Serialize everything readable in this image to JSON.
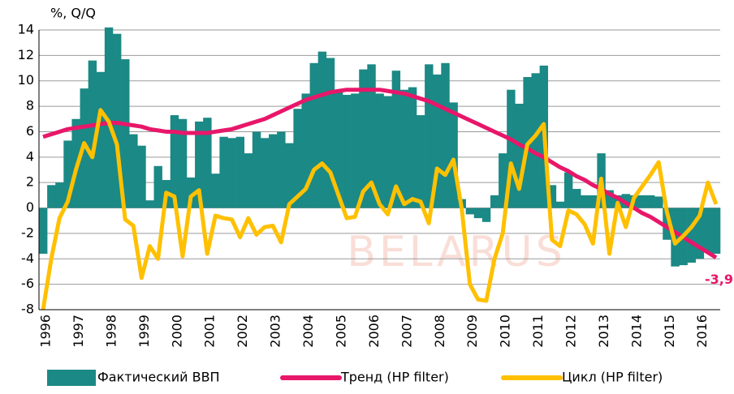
{
  "chart_data": {
    "type": "bar-line",
    "ylabel": "%, Q/Q",
    "watermark": "BELARUS",
    "annotation": "-3,9",
    "categories": [
      "1996",
      null,
      null,
      null,
      "1997",
      null,
      null,
      null,
      "1998",
      null,
      null,
      null,
      "1999",
      null,
      null,
      null,
      "2000",
      null,
      null,
      null,
      "2001",
      null,
      null,
      null,
      "2002",
      null,
      null,
      null,
      "2003",
      null,
      null,
      null,
      "2004",
      null,
      null,
      null,
      "2005",
      null,
      null,
      null,
      "2006",
      null,
      null,
      null,
      "2007",
      null,
      null,
      null,
      "2008",
      null,
      null,
      null,
      "2009",
      null,
      null,
      null,
      "2010",
      null,
      null,
      null,
      "2011",
      null,
      null,
      null,
      "2012",
      null,
      null,
      null,
      "2013",
      null,
      null,
      null,
      "2014",
      null,
      null,
      null,
      "2015",
      null,
      null,
      null,
      "2016",
      null,
      null
    ],
    "series": [
      {
        "name": "Фактический ВВП",
        "kind": "bar",
        "color": "#1b8985",
        "values": [
          -3.6,
          1.8,
          2,
          5.3,
          7,
          9.4,
          11.6,
          10.7,
          14.2,
          13.7,
          11.7,
          5.8,
          4.9,
          0.6,
          3.3,
          2.2,
          7.3,
          7,
          2.4,
          6.8,
          7.1,
          2.7,
          5.6,
          5.5,
          5.6,
          4.3,
          6,
          5.5,
          5.8,
          6,
          5.1,
          7.8,
          9,
          11.4,
          12.3,
          11.8,
          9.3,
          8.9,
          9,
          10.9,
          11.3,
          9,
          8.8,
          10.8,
          9.3,
          9.5,
          7.3,
          11.3,
          10.5,
          11.4,
          8.3,
          0.7,
          -0.5,
          -0.8,
          -1.1,
          1,
          4.3,
          9.3,
          8.2,
          10.3,
          10.6,
          11.2,
          1.8,
          0.5,
          2.8,
          1.5,
          1,
          1,
          4.3,
          1.4,
          1,
          1.1,
          1,
          1,
          1,
          0.9,
          -2.5,
          -4.6,
          -4.5,
          -4.3,
          -4,
          -3.5,
          -3.6
        ]
      },
      {
        "name": "Тренд (HP filter)",
        "kind": "line",
        "color": "#e8176a",
        "values": [
          5.6,
          5.8,
          6.0,
          6.2,
          6.3,
          6.4,
          6.5,
          6.6,
          6.7,
          6.7,
          6.6,
          6.5,
          6.4,
          6.2,
          6.1,
          6.0,
          6.0,
          5.9,
          5.9,
          5.9,
          5.9,
          6.0,
          6.1,
          6.2,
          6.4,
          6.6,
          6.8,
          7.0,
          7.3,
          7.6,
          7.9,
          8.2,
          8.5,
          8.7,
          8.9,
          9.1,
          9.2,
          9.3,
          9.3,
          9.3,
          9.3,
          9.3,
          9.2,
          9.1,
          9.0,
          8.8,
          8.6,
          8.4,
          8.1,
          7.8,
          7.5,
          7.2,
          6.9,
          6.6,
          6.3,
          6.0,
          5.7,
          5.4,
          5.0,
          4.7,
          4.3,
          4.0,
          3.6,
          3.2,
          2.9,
          2.5,
          2.2,
          1.8,
          1.5,
          1.1,
          0.8,
          0.4,
          0.0,
          -0.4,
          -0.7,
          -1.1,
          -1.5,
          -1.9,
          -2.3,
          -2.7,
          -3.1,
          -3.5,
          -3.9
        ]
      },
      {
        "name": "Цикл (HP filter)",
        "kind": "line",
        "color": "#ffc000",
        "values": [
          -8,
          -4,
          -0.8,
          0.5,
          3,
          5.1,
          4,
          7.7,
          6.8,
          5,
          -0.9,
          -1.4,
          -5.5,
          -3,
          -4,
          1.2,
          0.9,
          -3.8,
          0.9,
          1.4,
          -3.6,
          -0.6,
          -0.8,
          -0.9,
          -2.3,
          -0.8,
          -2.1,
          -1.5,
          -1.4,
          -2.7,
          0.3,
          0.9,
          1.5,
          3.0,
          3.5,
          2.8,
          1.0,
          -0.8,
          -0.7,
          1.3,
          2.0,
          0.3,
          -0.5,
          1.7,
          0.3,
          0.7,
          0.5,
          -1.2,
          3.1,
          2.6,
          3.8,
          0.0,
          -6.0,
          -7.2,
          -7.3,
          -4,
          -2,
          3.5,
          1.5,
          5.0,
          5.7,
          6.6,
          -2.5,
          -3.0,
          -0.2,
          -0.5,
          -1.3,
          -2.8,
          2.3,
          -3.6,
          0.4,
          -1.5,
          0.8,
          1.7,
          2.6,
          3.6,
          -0.3,
          -2.8,
          -2.2,
          -1.5,
          -0.6,
          2.0,
          0.3
        ]
      }
    ],
    "ylim": [
      -8,
      14
    ],
    "yticks": [
      -8,
      -6,
      -4,
      -2,
      0,
      2,
      4,
      6,
      8,
      10,
      12,
      14
    ],
    "grid": true
  }
}
